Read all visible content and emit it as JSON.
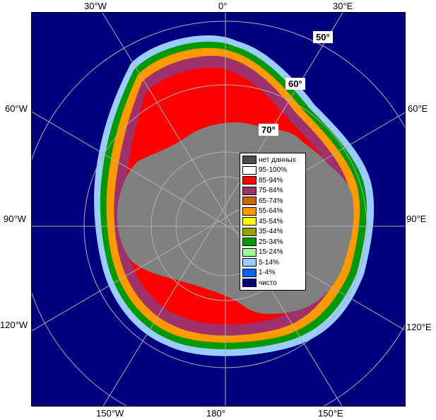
{
  "map": {
    "longitude_labels": {
      "top": [
        "30°W",
        "0°",
        "30°E"
      ],
      "left": [
        "60°W",
        "90°W",
        "120°W"
      ],
      "right": [
        "60°E",
        "90°E",
        "120°E"
      ],
      "bottom": [
        "150°W",
        "180°",
        "150°E"
      ]
    },
    "latitude_labels": [
      "50°",
      "60°",
      "70°"
    ],
    "colors": {
      "open_water": "#00007f",
      "land": "#808080",
      "no_data": "#404040",
      "graticule": "#b0b0b0"
    }
  },
  "legend": {
    "items": [
      {
        "label": "нет данных",
        "color": "#4d4d4d"
      },
      {
        "label": "95-100%",
        "color": "#ffffff"
      },
      {
        "label": "85-94%",
        "color": "#ff0000"
      },
      {
        "label": "75-84%",
        "color": "#a0306a"
      },
      {
        "label": "65-74%",
        "color": "#cc6600"
      },
      {
        "label": "55-64%",
        "color": "#ff9900"
      },
      {
        "label": "45-54%",
        "color": "#ffff00"
      },
      {
        "label": "35-44%",
        "color": "#99a000"
      },
      {
        "label": "25-34%",
        "color": "#009900"
      },
      {
        "label": "15-24%",
        "color": "#99ff99"
      },
      {
        "label": "5-14%",
        "color": "#99ccff"
      },
      {
        "label": "1-4%",
        "color": "#0066ff"
      },
      {
        "label": "чисто",
        "color": "#00007f"
      }
    ]
  }
}
